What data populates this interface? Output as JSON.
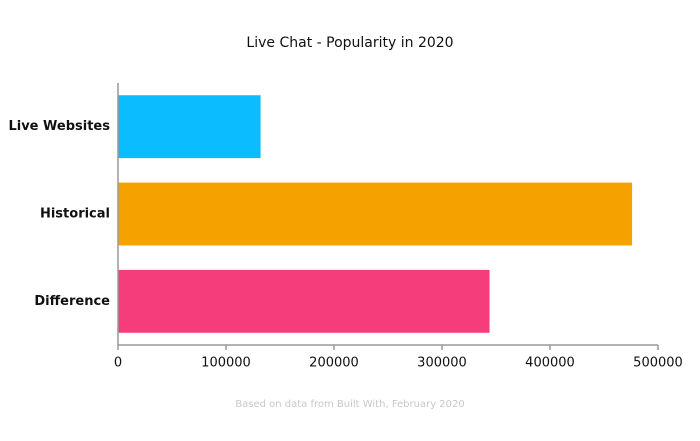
{
  "chart_data": {
    "type": "bar",
    "orientation": "horizontal",
    "title": "Live Chat - Popularity in 2020",
    "categories": [
      "Live Websites",
      "Historical",
      "Difference"
    ],
    "values": [
      132000,
      476000,
      344000
    ],
    "colors": [
      "#0bbcff",
      "#f5a200",
      "#f53d7c"
    ],
    "xlim": [
      0,
      500000
    ],
    "xticks": [
      0,
      100000,
      200000,
      300000,
      400000,
      500000
    ],
    "source": "Based on data from Built With, February 2020"
  }
}
